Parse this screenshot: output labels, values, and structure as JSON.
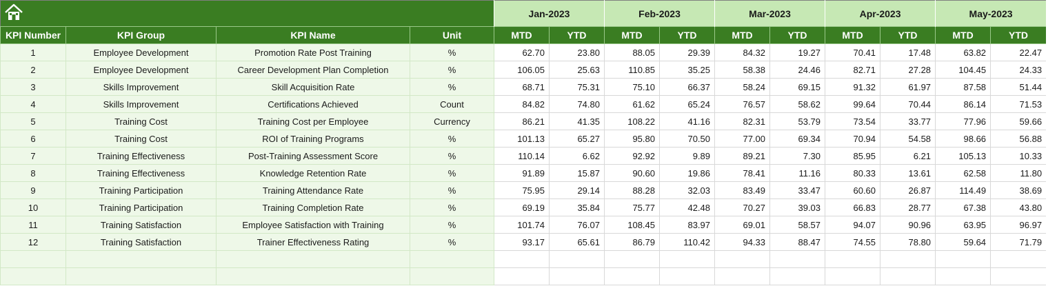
{
  "colors": {
    "header_green": "#3a7d22",
    "month_green": "#c6e8b4",
    "left_fill": "#eef8e8"
  },
  "banner": {
    "icon": "home-icon"
  },
  "months": [
    "Jan-2023",
    "Feb-2023",
    "Mar-2023",
    "Apr-2023",
    "May-2023"
  ],
  "columns": {
    "kpi_number": "KPI Number",
    "kpi_group": "KPI Group",
    "kpi_name": "KPI Name",
    "unit": "Unit",
    "mtd": "MTD",
    "ytd": "YTD"
  },
  "rows": [
    {
      "num": "1",
      "group": "Employee Development",
      "name": "Promotion Rate Post Training",
      "unit": "%",
      "vals": [
        "62.70",
        "23.80",
        "88.05",
        "29.39",
        "84.32",
        "19.27",
        "70.41",
        "17.48",
        "63.82",
        "22.47"
      ]
    },
    {
      "num": "2",
      "group": "Employee Development",
      "name": "Career Development Plan Completion",
      "unit": "%",
      "vals": [
        "106.05",
        "25.63",
        "110.85",
        "35.25",
        "58.38",
        "24.46",
        "82.71",
        "27.28",
        "104.45",
        "24.33"
      ]
    },
    {
      "num": "3",
      "group": "Skills Improvement",
      "name": "Skill Acquisition Rate",
      "unit": "%",
      "vals": [
        "68.71",
        "75.31",
        "75.10",
        "66.37",
        "58.24",
        "69.15",
        "91.32",
        "61.97",
        "87.58",
        "51.44"
      ]
    },
    {
      "num": "4",
      "group": "Skills Improvement",
      "name": "Certifications Achieved",
      "unit": "Count",
      "vals": [
        "84.82",
        "74.80",
        "61.62",
        "65.24",
        "76.57",
        "58.62",
        "99.64",
        "70.44",
        "86.14",
        "71.53"
      ]
    },
    {
      "num": "5",
      "group": "Training Cost",
      "name": "Training Cost per Employee",
      "unit": "Currency",
      "vals": [
        "86.21",
        "41.35",
        "108.22",
        "41.16",
        "82.31",
        "53.79",
        "73.54",
        "33.77",
        "77.96",
        "59.66"
      ]
    },
    {
      "num": "6",
      "group": "Training Cost",
      "name": "ROI of Training Programs",
      "unit": "%",
      "vals": [
        "101.13",
        "65.27",
        "95.80",
        "70.50",
        "77.00",
        "69.34",
        "70.94",
        "54.58",
        "98.66",
        "56.88"
      ]
    },
    {
      "num": "7",
      "group": "Training Effectiveness",
      "name": "Post-Training Assessment Score",
      "unit": "%",
      "vals": [
        "110.14",
        "6.62",
        "92.92",
        "9.89",
        "89.21",
        "7.30",
        "85.95",
        "6.21",
        "105.13",
        "10.33"
      ]
    },
    {
      "num": "8",
      "group": "Training Effectiveness",
      "name": "Knowledge Retention Rate",
      "unit": "%",
      "vals": [
        "91.89",
        "15.87",
        "90.60",
        "19.86",
        "78.41",
        "11.16",
        "80.33",
        "13.61",
        "62.58",
        "11.80"
      ]
    },
    {
      "num": "9",
      "group": "Training Participation",
      "name": "Training Attendance Rate",
      "unit": "%",
      "vals": [
        "75.95",
        "29.14",
        "88.28",
        "32.03",
        "83.49",
        "33.47",
        "60.60",
        "26.87",
        "114.49",
        "38.69"
      ]
    },
    {
      "num": "10",
      "group": "Training Participation",
      "name": "Training Completion Rate",
      "unit": "%",
      "vals": [
        "69.19",
        "35.84",
        "75.77",
        "42.48",
        "70.27",
        "39.03",
        "66.83",
        "28.77",
        "67.38",
        "43.80"
      ]
    },
    {
      "num": "11",
      "group": "Training Satisfaction",
      "name": "Employee Satisfaction with Training",
      "unit": "%",
      "vals": [
        "101.74",
        "76.07",
        "108.45",
        "83.97",
        "69.01",
        "58.57",
        "94.07",
        "90.96",
        "63.95",
        "96.97"
      ]
    },
    {
      "num": "12",
      "group": "Training Satisfaction",
      "name": "Trainer Effectiveness Rating",
      "unit": "%",
      "vals": [
        "93.17",
        "65.61",
        "86.79",
        "110.42",
        "94.33",
        "88.47",
        "74.55",
        "78.80",
        "59.64",
        "71.79"
      ]
    }
  ]
}
